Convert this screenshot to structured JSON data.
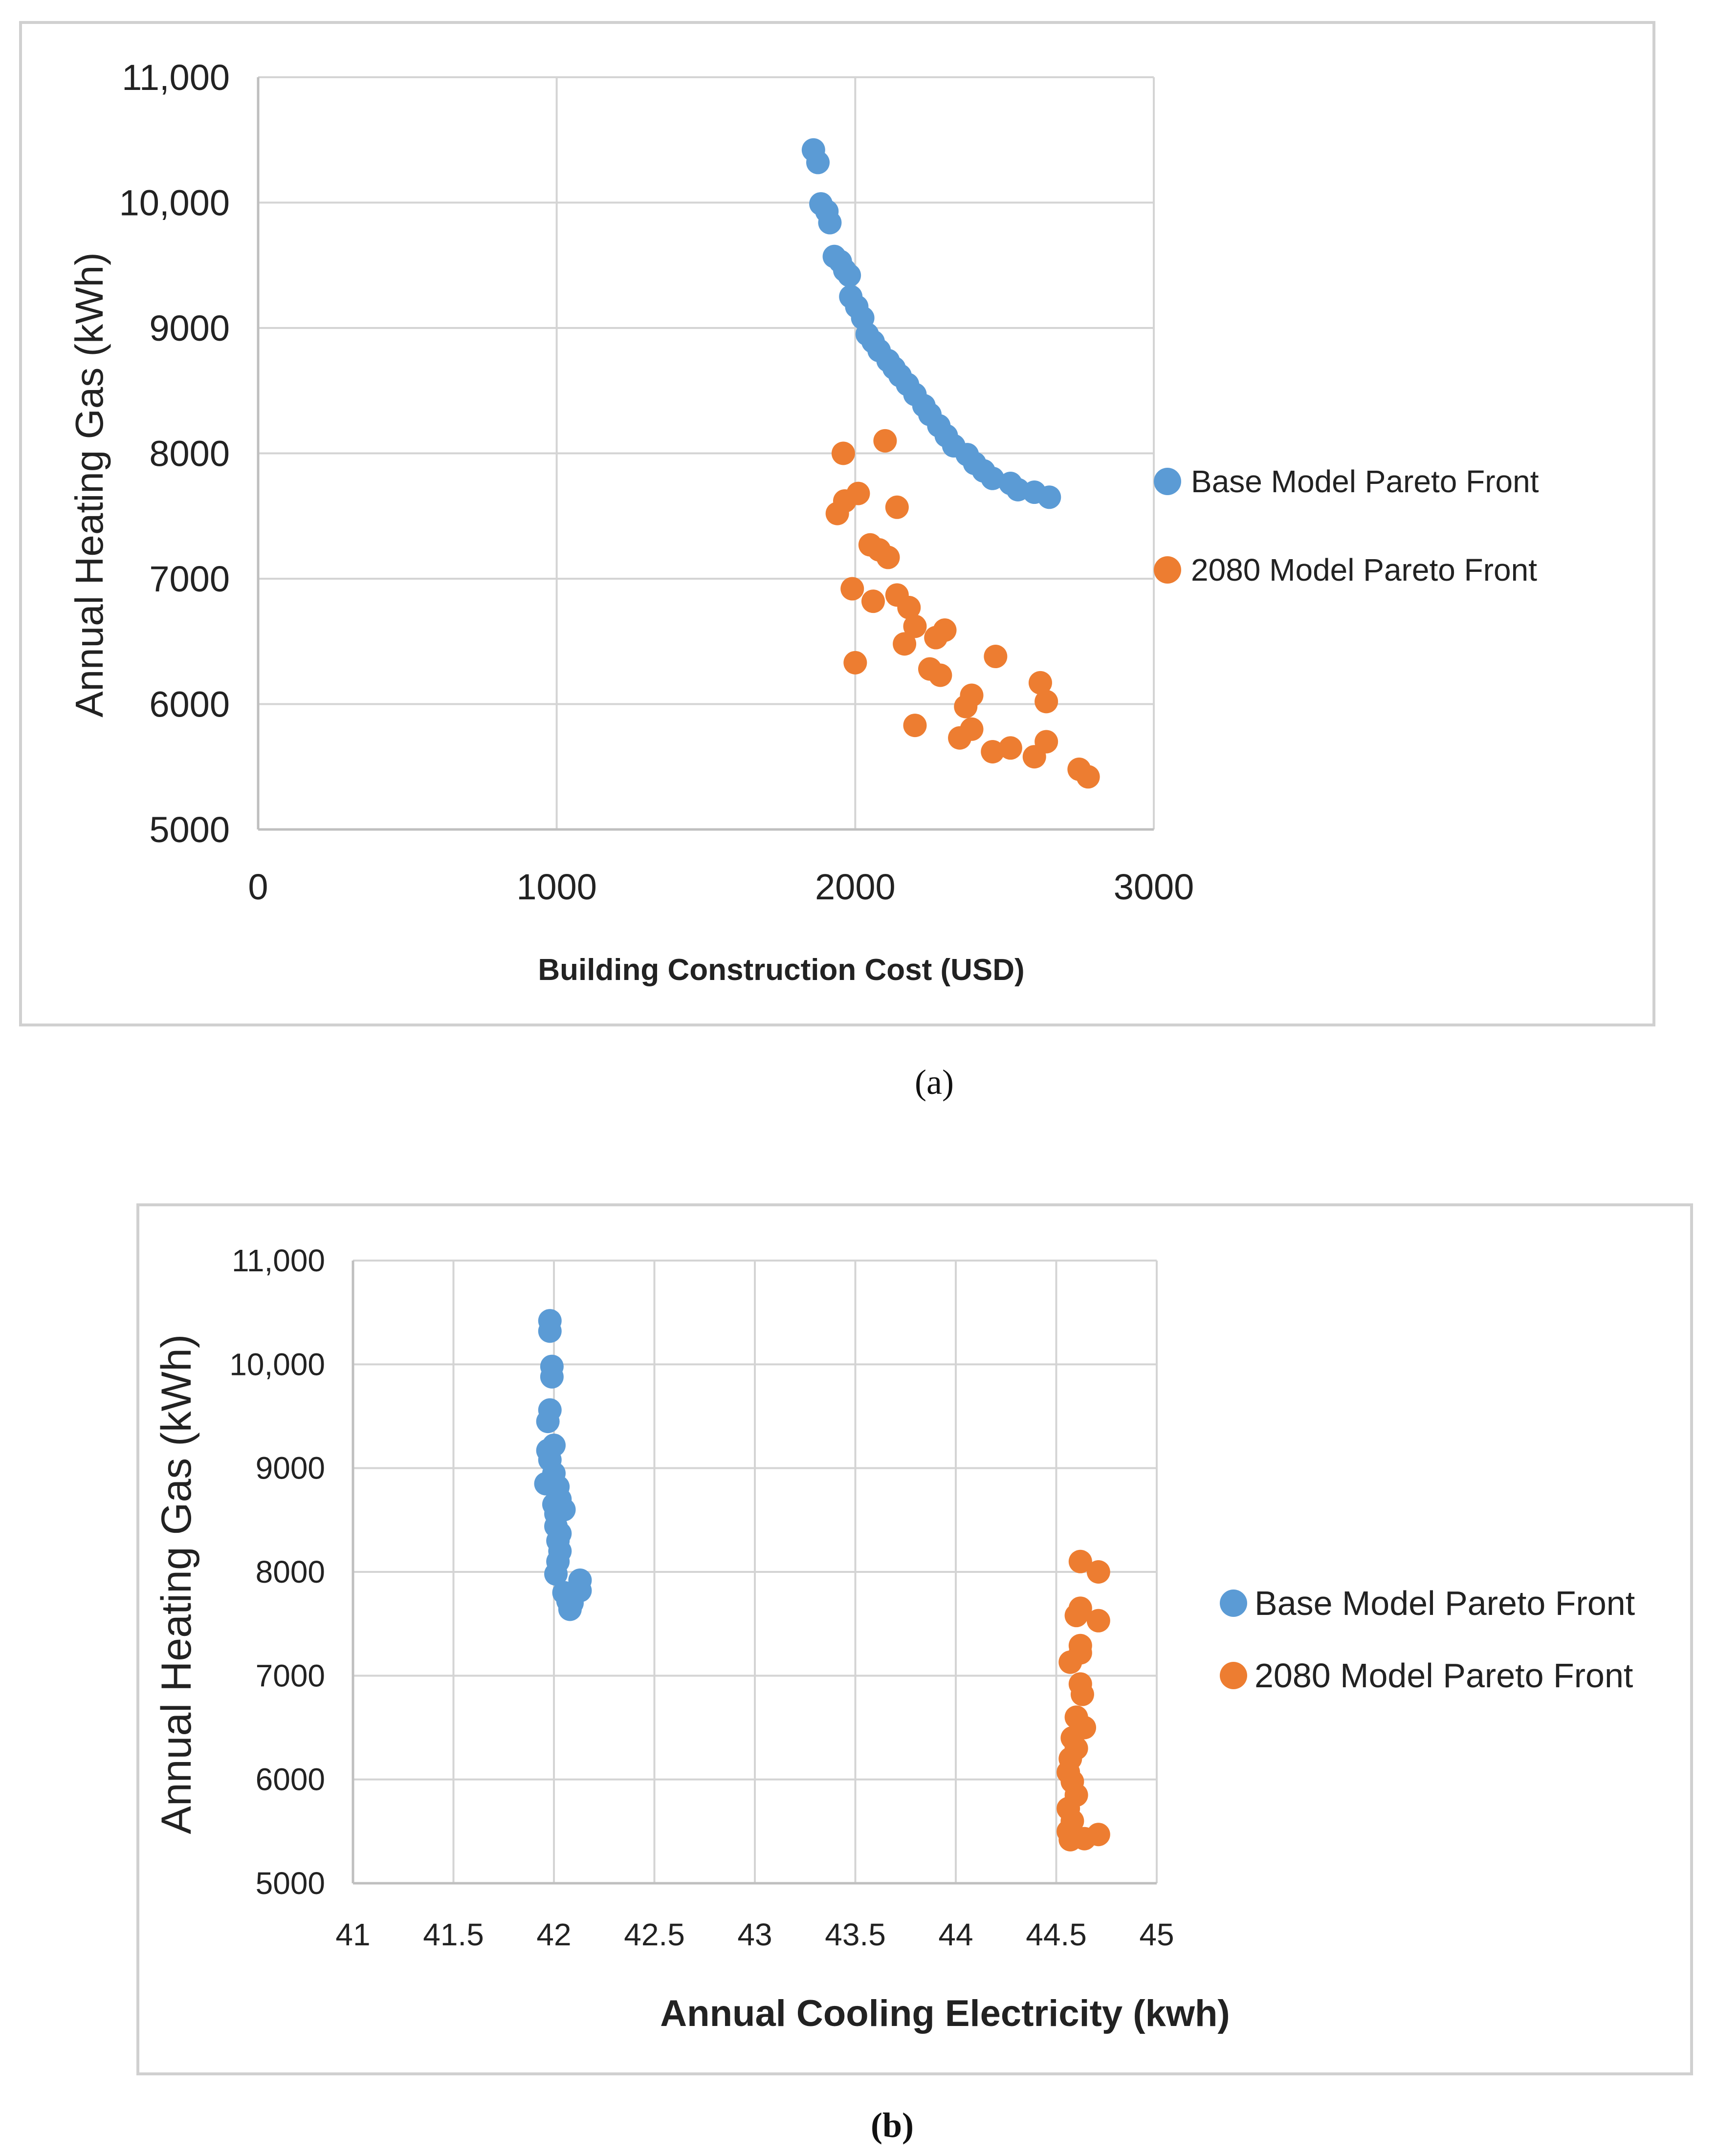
{
  "colors": {
    "base": "#5b9bd5",
    "future": "#ed7d31"
  },
  "chart_data": [
    {
      "type": "scatter",
      "panel_label": "(a)",
      "title": "",
      "xlabel": "Building Construction Cost (USD)",
      "ylabel": "Annual Heating Gas (kWh)",
      "xlim": [
        0,
        3000
      ],
      "ylim": [
        5000,
        11000
      ],
      "x_ticks": [
        "0",
        "1000",
        "2000",
        "3000"
      ],
      "y_ticks": [
        "5000",
        "6000",
        "7000",
        "8000",
        "9000",
        "10,000",
        "11,000"
      ],
      "grid": true,
      "legend_position": "right",
      "series": [
        {
          "name": "Base Model Pareto Front",
          "color": "#5b9bd5",
          "points": [
            [
              1860,
              10420
            ],
            [
              1875,
              10320
            ],
            [
              1885,
              9990
            ],
            [
              1905,
              9930
            ],
            [
              1915,
              9840
            ],
            [
              1930,
              9570
            ],
            [
              1950,
              9530
            ],
            [
              1965,
              9460
            ],
            [
              1980,
              9420
            ],
            [
              1985,
              9250
            ],
            [
              2005,
              9170
            ],
            [
              2025,
              9080
            ],
            [
              2040,
              8950
            ],
            [
              2060,
              8890
            ],
            [
              2080,
              8820
            ],
            [
              2110,
              8740
            ],
            [
              2130,
              8680
            ],
            [
              2150,
              8620
            ],
            [
              2175,
              8550
            ],
            [
              2200,
              8470
            ],
            [
              2230,
              8380
            ],
            [
              2250,
              8310
            ],
            [
              2280,
              8220
            ],
            [
              2305,
              8140
            ],
            [
              2330,
              8060
            ],
            [
              2375,
              7990
            ],
            [
              2400,
              7920
            ],
            [
              2430,
              7860
            ],
            [
              2460,
              7800
            ],
            [
              2520,
              7760
            ],
            [
              2545,
              7710
            ],
            [
              2600,
              7690
            ],
            [
              2650,
              7650
            ]
          ]
        },
        {
          "name": "2080 Model Pareto Front",
          "color": "#ed7d31",
          "points": [
            [
              1960,
              8000
            ],
            [
              2100,
              8100
            ],
            [
              1940,
              7520
            ],
            [
              1965,
              7620
            ],
            [
              2010,
              7680
            ],
            [
              2140,
              7570
            ],
            [
              2050,
              7270
            ],
            [
              2080,
              7230
            ],
            [
              2110,
              7170
            ],
            [
              1990,
              6920
            ],
            [
              2060,
              6820
            ],
            [
              2140,
              6870
            ],
            [
              2180,
              6770
            ],
            [
              2200,
              6620
            ],
            [
              2165,
              6480
            ],
            [
              2270,
              6530
            ],
            [
              2300,
              6590
            ],
            [
              2470,
              6380
            ],
            [
              2250,
              6280
            ],
            [
              2285,
              6230
            ],
            [
              2000,
              6330
            ],
            [
              2620,
              6170
            ],
            [
              2640,
              6020
            ],
            [
              2390,
              6070
            ],
            [
              2370,
              5980
            ],
            [
              2200,
              5830
            ],
            [
              2390,
              5800
            ],
            [
              2350,
              5730
            ],
            [
              2460,
              5620
            ],
            [
              2520,
              5650
            ],
            [
              2600,
              5580
            ],
            [
              2640,
              5700
            ],
            [
              2750,
              5480
            ],
            [
              2780,
              5420
            ]
          ]
        }
      ]
    },
    {
      "type": "scatter",
      "panel_label": "(b)",
      "title": "",
      "xlabel": "Annual Cooling Electricity (kwh)",
      "ylabel": "Annual Heating Gas (kWh)",
      "xlim": [
        41,
        45
      ],
      "ylim": [
        5000,
        11000
      ],
      "x_ticks": [
        "41",
        "41.5",
        "42",
        "42.5",
        "43",
        "43.5",
        "44",
        "44.5",
        "45"
      ],
      "y_ticks": [
        "5000",
        "6000",
        "7000",
        "8000",
        "9000",
        "10,000",
        "11,000"
      ],
      "grid": true,
      "legend_position": "right",
      "series": [
        {
          "name": "Base Model Pareto Front",
          "color": "#5b9bd5",
          "points": [
            [
              41.98,
              10420
            ],
            [
              41.98,
              10320
            ],
            [
              41.99,
              9980
            ],
            [
              41.99,
              9880
            ],
            [
              41.98,
              9560
            ],
            [
              41.97,
              9450
            ],
            [
              41.97,
              9170
            ],
            [
              42.0,
              9220
            ],
            [
              41.98,
              9080
            ],
            [
              42.0,
              8950
            ],
            [
              41.96,
              8850
            ],
            [
              42.02,
              8820
            ],
            [
              42.0,
              8650
            ],
            [
              42.03,
              8700
            ],
            [
              42.01,
              8560
            ],
            [
              42.05,
              8600
            ],
            [
              42.01,
              8440
            ],
            [
              42.03,
              8370
            ],
            [
              42.02,
              8300
            ],
            [
              42.03,
              8200
            ],
            [
              42.02,
              8100
            ],
            [
              42.01,
              7980
            ],
            [
              42.13,
              7920
            ],
            [
              42.13,
              7820
            ],
            [
              42.05,
              7800
            ],
            [
              42.07,
              7720
            ],
            [
              42.09,
              7700
            ],
            [
              42.08,
              7640
            ]
          ]
        },
        {
          "name": "2080 Model Pareto Front",
          "color": "#ed7d31",
          "points": [
            [
              44.62,
              8100
            ],
            [
              44.71,
              8000
            ],
            [
              44.62,
              7650
            ],
            [
              44.6,
              7580
            ],
            [
              44.71,
              7530
            ],
            [
              44.62,
              7290
            ],
            [
              44.62,
              7220
            ],
            [
              44.57,
              7130
            ],
            [
              44.62,
              6920
            ],
            [
              44.63,
              6820
            ],
            [
              44.6,
              6600
            ],
            [
              44.64,
              6500
            ],
            [
              44.58,
              6400
            ],
            [
              44.6,
              6300
            ],
            [
              44.57,
              6200
            ],
            [
              44.56,
              6070
            ],
            [
              44.58,
              5980
            ],
            [
              44.6,
              5850
            ],
            [
              44.56,
              5720
            ],
            [
              44.58,
              5600
            ],
            [
              44.56,
              5500
            ],
            [
              44.57,
              5420
            ],
            [
              44.64,
              5430
            ],
            [
              44.71,
              5470
            ]
          ]
        }
      ]
    }
  ]
}
